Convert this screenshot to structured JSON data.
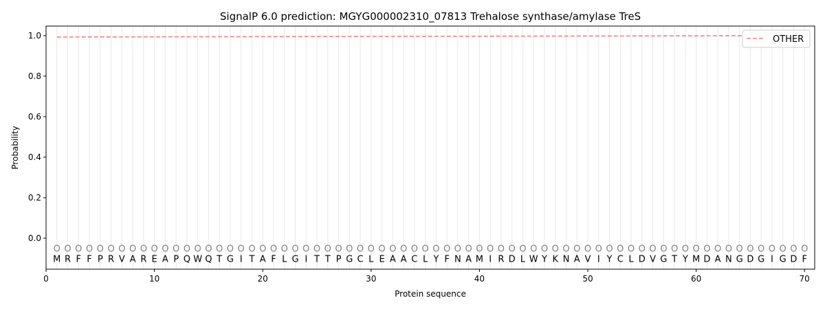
{
  "chart_data": {
    "type": "line",
    "title": "SignalP 6.0 prediction: MGYG000002310_07813 Trehalose synthase/amylase TreS",
    "xlabel": "Protein sequence",
    "ylabel": "Probability",
    "xlim": [
      0,
      70.94
    ],
    "ylim": [
      -0.153,
      1.047
    ],
    "xticks": [
      0,
      10,
      20,
      30,
      40,
      50,
      60,
      70
    ],
    "yticks": [
      "0.0",
      "0.2",
      "0.4",
      "0.6",
      "0.8",
      "1.0"
    ],
    "grid": "vertical lines at each residue",
    "legend_placement": "top-right",
    "sequence": "MRFFPRVAREAPQWQTGITAFLGITTPGCLEAACLYFNAMIRDLWYKNAVIYCLDVGTYMDANGDGIGDF",
    "region_label": "O",
    "series": [
      {
        "name": "OTHER",
        "color": "#f08080",
        "style": "dashed",
        "x_start": 1,
        "x_end": 70,
        "y_start": 0.993,
        "y_end": 1.0
      }
    ]
  }
}
